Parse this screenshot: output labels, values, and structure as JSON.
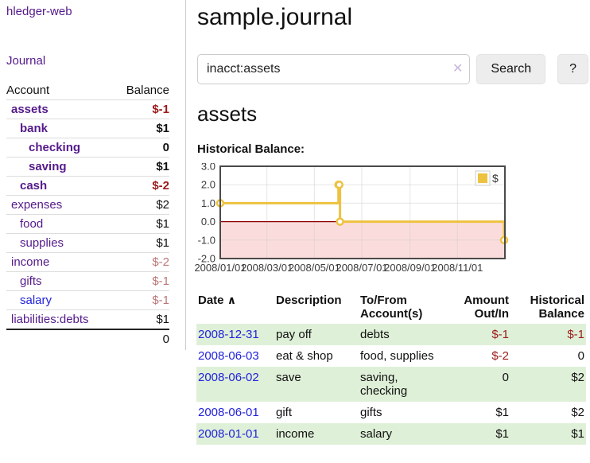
{
  "colors": {
    "link_purple": "#551A8B",
    "link_blue": "#2222dd",
    "negative_red": "#9c1b1b",
    "negative_muted": "#bb7777",
    "row_stripe_green": "#dff0d8",
    "chart_line_gold": "#EDC240"
  },
  "sidebar": {
    "app_title": "hledger-web",
    "nav_journal": "Journal",
    "accounts_header": {
      "account": "Account",
      "balance": "Balance"
    },
    "accounts": [
      {
        "name": "assets",
        "balance": "$-1",
        "level": 0,
        "bold": true,
        "balance_style": "neg"
      },
      {
        "name": "bank",
        "balance": "$1",
        "level": 1,
        "bold": true,
        "balance_style": "pos"
      },
      {
        "name": "checking",
        "balance": "0",
        "level": 2,
        "bold": true,
        "balance_style": "pos"
      },
      {
        "name": "saving",
        "balance": "$1",
        "level": 2,
        "bold": true,
        "balance_style": "pos"
      },
      {
        "name": "cash",
        "balance": "$-2",
        "level": 1,
        "bold": true,
        "balance_style": "neg"
      },
      {
        "name": "expenses",
        "balance": "$2",
        "level": 0,
        "bold": false,
        "balance_style": "pos"
      },
      {
        "name": "food",
        "balance": "$1",
        "level": 1,
        "bold": false,
        "balance_style": "pos"
      },
      {
        "name": "supplies",
        "balance": "$1",
        "level": 1,
        "bold": false,
        "balance_style": "pos"
      },
      {
        "name": "income",
        "balance": "$-2",
        "level": 0,
        "bold": false,
        "balance_style": "neg-muted"
      },
      {
        "name": "gifts",
        "balance": "$-1",
        "level": 1,
        "bold": false,
        "balance_style": "neg-muted"
      },
      {
        "name": "salary",
        "balance": "$-1",
        "level": 1,
        "bold": false,
        "balance_style": "neg-muted",
        "link_style": "blue"
      },
      {
        "name": "liabilities:debts",
        "balance": "$1",
        "level": 0,
        "bold": false,
        "balance_style": "pos"
      }
    ],
    "total": "0"
  },
  "header": {
    "title": "sample.journal"
  },
  "search": {
    "value": "inacct:assets",
    "clear_icon": "✕",
    "search_label": "Search",
    "help_label": "?"
  },
  "account_page": {
    "heading": "assets",
    "chart_label": "Historical Balance:"
  },
  "chart_data": {
    "type": "line",
    "title": "Historical Balance",
    "steps": true,
    "series": [
      {
        "name": "$",
        "color": "#EDC240",
        "points": [
          [
            "2008-01-01",
            1
          ],
          [
            "2008-06-01",
            2
          ],
          [
            "2008-06-02",
            2
          ],
          [
            "2008-06-03",
            0
          ],
          [
            "2008-12-31",
            -1
          ]
        ]
      }
    ],
    "ylim": [
      -2,
      3
    ],
    "yticks": [
      3.0,
      2.0,
      1.0,
      0.0,
      -1.0,
      -2.0
    ],
    "ytick_labels": [
      "3.0",
      "2.0",
      "1.0",
      "0.0",
      "-1.0",
      "-2.0"
    ],
    "xlim": [
      "2008-01-01",
      "2009-01-01"
    ],
    "xticks": [
      "2008-01-01",
      "2008-03-01",
      "2008-05-01",
      "2008-07-01",
      "2008-09-01",
      "2008-11-01"
    ],
    "xtick_labels": [
      "2008/01/01",
      "2008/03/01",
      "2008/05/01",
      "2008/07/01",
      "2008/09/01",
      "2008/11/01"
    ],
    "legend": "$",
    "legend_position": "top-right",
    "grid": true,
    "negative_fill": "#fbdcdc",
    "zero_line_color": "#8b0000"
  },
  "register": {
    "sort_icon": "∧",
    "columns": [
      {
        "label": "Date"
      },
      {
        "label": "Description"
      },
      {
        "label": "To/From Account(s)"
      },
      {
        "label": "Amount Out/In",
        "align": "right"
      },
      {
        "label": "Historical Balance",
        "align": "right"
      }
    ],
    "rows": [
      {
        "date": "2008-12-31",
        "description": "pay off",
        "accounts": "debts",
        "amount": "$-1",
        "amount_neg": true,
        "balance": "$-1",
        "balance_neg": true
      },
      {
        "date": "2008-06-03",
        "description": "eat & shop",
        "accounts": "food, supplies",
        "amount": "$-2",
        "amount_neg": true,
        "balance": "0",
        "balance_neg": false
      },
      {
        "date": "2008-06-02",
        "description": "save",
        "accounts": "saving, checking",
        "amount": "0",
        "amount_neg": false,
        "balance": "$2",
        "balance_neg": false
      },
      {
        "date": "2008-06-01",
        "description": "gift",
        "accounts": "gifts",
        "amount": "$1",
        "amount_neg": false,
        "balance": "$2",
        "balance_neg": false
      },
      {
        "date": "2008-01-01",
        "description": "income",
        "accounts": "salary",
        "amount": "$1",
        "amount_neg": false,
        "balance": "$1",
        "balance_neg": false
      }
    ]
  }
}
